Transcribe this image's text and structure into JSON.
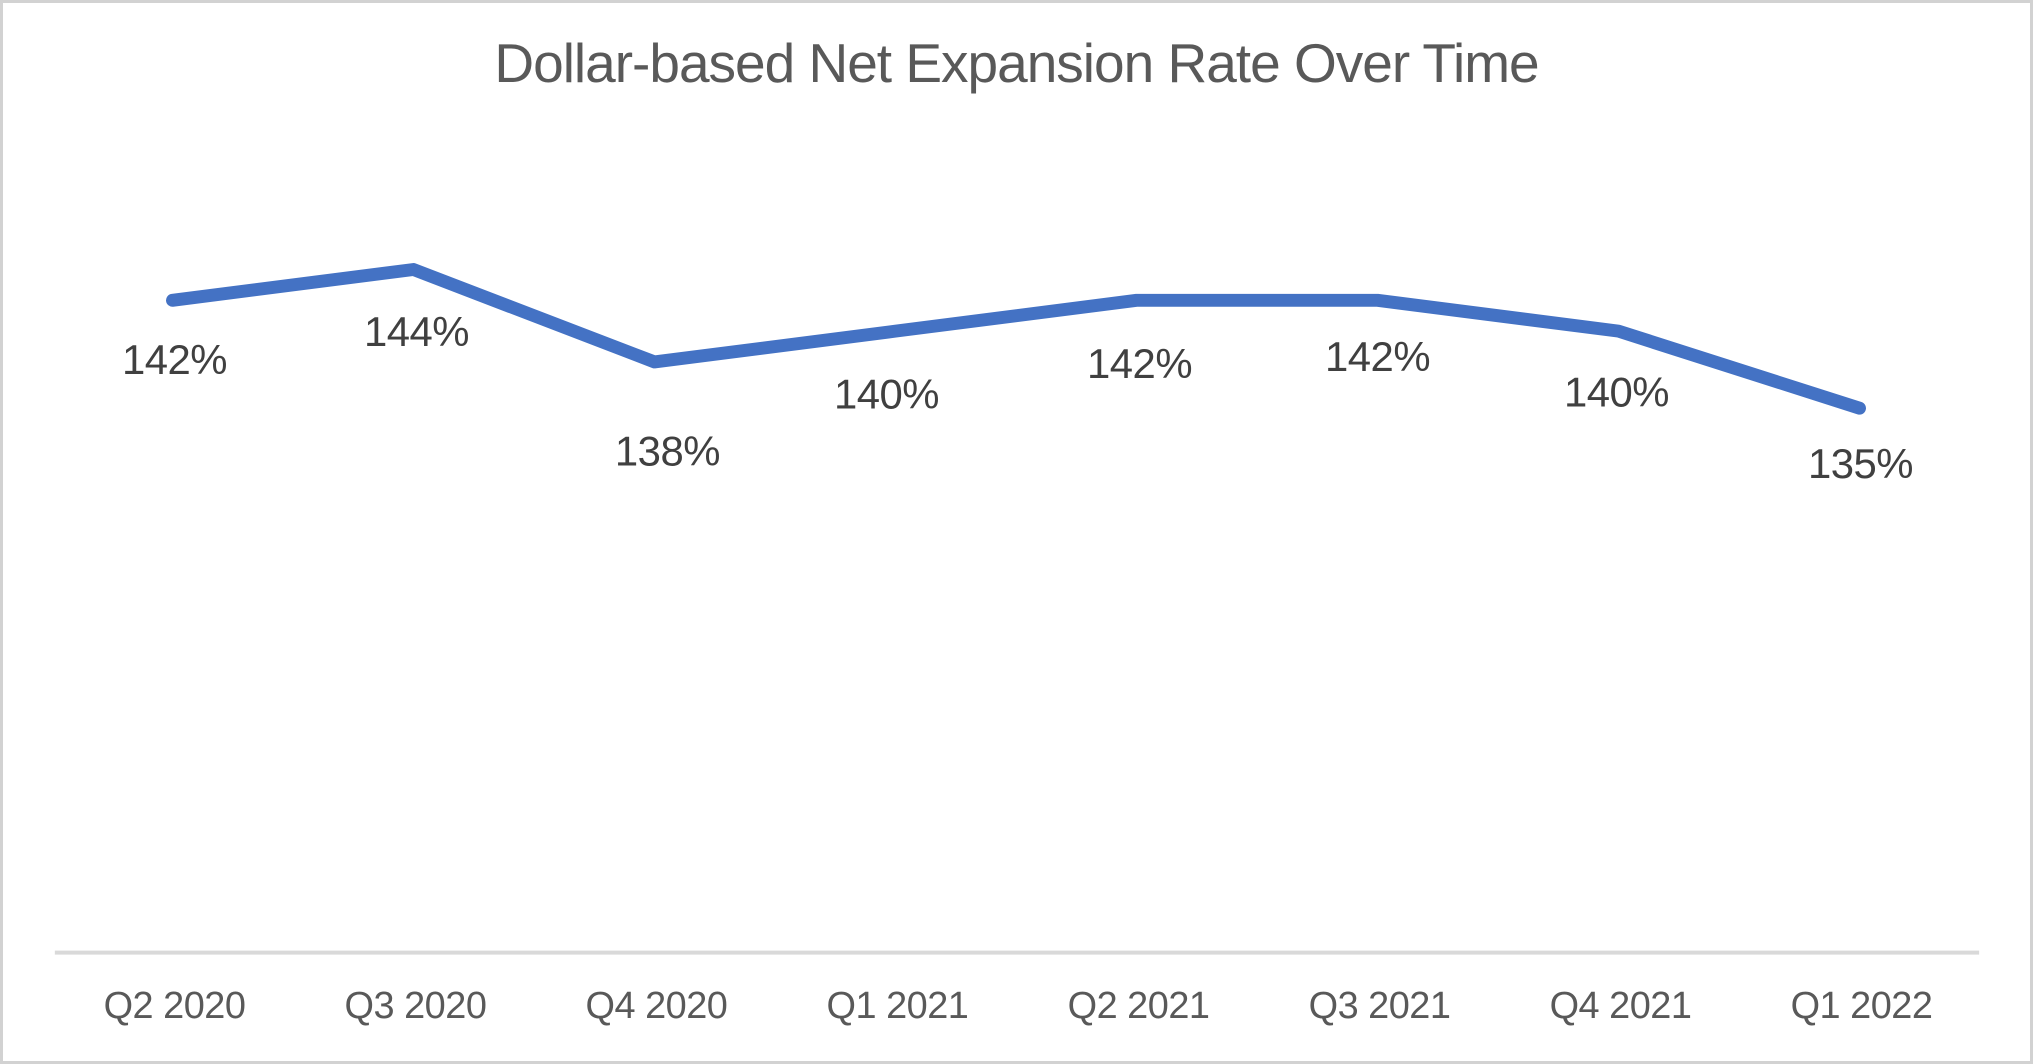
{
  "chart_data": {
    "type": "line",
    "title": "Dollar-based Net Expansion Rate Over Time",
    "categories": [
      "Q2 2020",
      "Q3 2020",
      "Q4 2020",
      "Q1 2021",
      "Q2 2021",
      "Q3 2021",
      "Q4 2021",
      "Q1 2022"
    ],
    "values": [
      142,
      144,
      138,
      140,
      142,
      142,
      140,
      135
    ],
    "data_labels": [
      "142%",
      "144%",
      "138%",
      "140%",
      "142%",
      "142%",
      "140%",
      "135%"
    ],
    "xlabel": "",
    "ylabel": "",
    "legend": "none",
    "grid": false,
    "y_axis_visible": false,
    "x_axis_line_visible": true,
    "data_label_position": "below",
    "colors": {
      "line": "#4472C4",
      "data_label": "#404040",
      "axis_label": "#595959",
      "title": "#595959",
      "axis_line": "#D9D9D9",
      "frame_border": "#D2D2D2",
      "background": "#FFFFFF"
    }
  }
}
